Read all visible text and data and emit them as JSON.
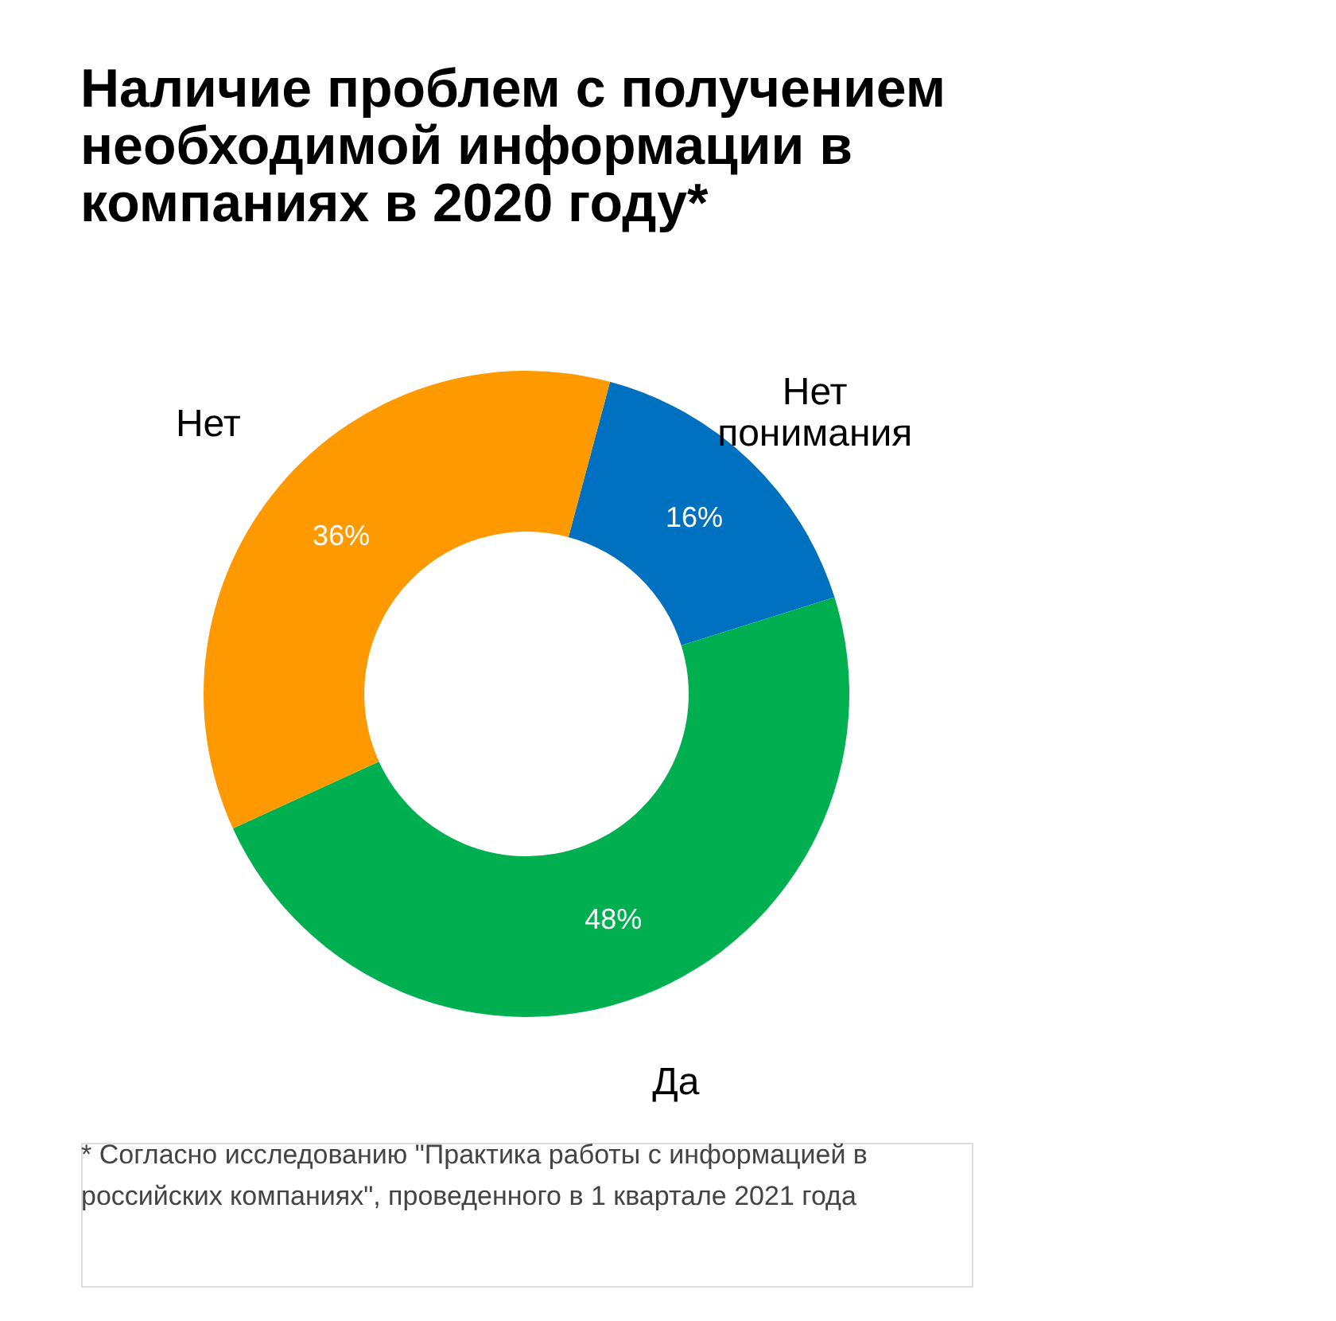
{
  "chart_data": {
    "type": "donut",
    "title": "Наличие проблем с получением необходимой информации в компаниях в 2020 году*",
    "categories": [
      "Нет понимания",
      "Да",
      "Нет"
    ],
    "values": [
      16,
      48,
      36
    ],
    "colors": [
      "#0070c0",
      "#00b050",
      "#ff9900"
    ],
    "value_labels": [
      "16%",
      "48%",
      "36%"
    ],
    "annotations": [
      "* Согласно исследованию \"Практика работы с информацией в российских компаниях\", проведенного в 1 квартале 2021 года"
    ]
  }
}
